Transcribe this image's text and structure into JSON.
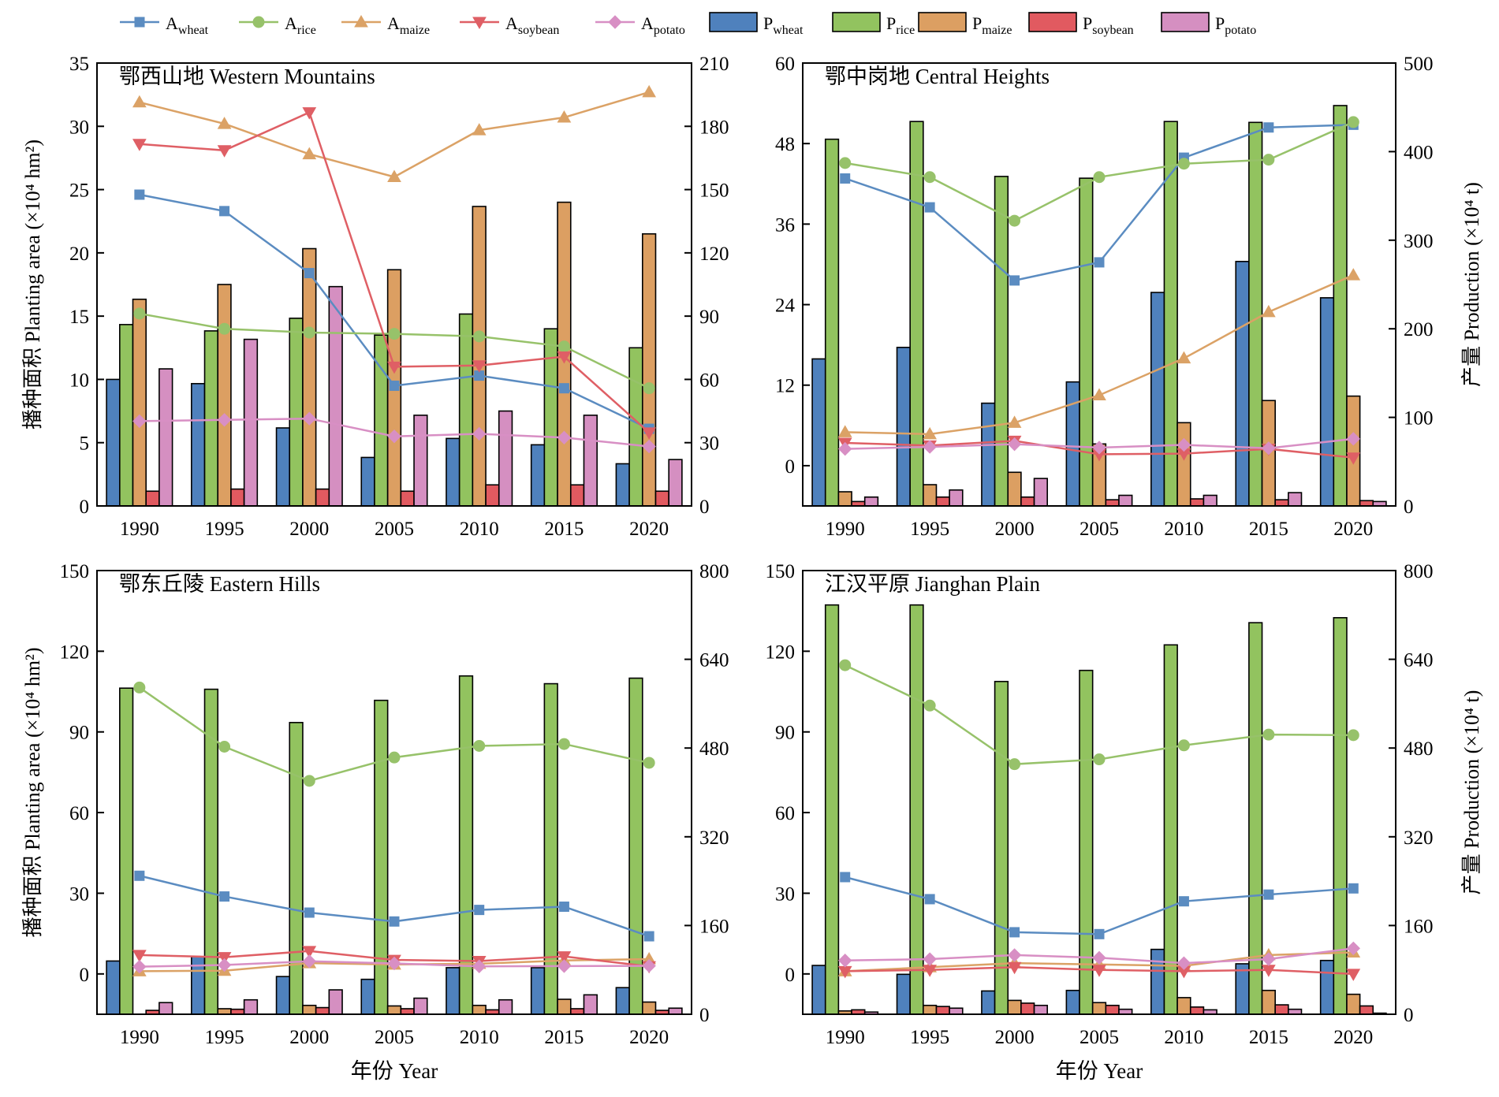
{
  "legend": {
    "items": [
      {
        "kind": "line",
        "series": "A_wheat",
        "base": "A",
        "sub": "wheat"
      },
      {
        "kind": "line",
        "series": "A_rice",
        "base": "A",
        "sub": "rice"
      },
      {
        "kind": "line",
        "series": "A_maize",
        "base": "A",
        "sub": "maize"
      },
      {
        "kind": "line",
        "series": "A_soybean",
        "base": "A",
        "sub": "soybean"
      },
      {
        "kind": "line",
        "series": "A_potato",
        "base": "A",
        "sub": "potato"
      },
      {
        "kind": "bar",
        "series": "P_wheat",
        "base": "P",
        "sub": "wheat"
      },
      {
        "kind": "bar",
        "series": "P_rice",
        "base": "P",
        "sub": "rice"
      },
      {
        "kind": "bar",
        "series": "P_maize",
        "base": "P",
        "sub": "maize"
      },
      {
        "kind": "bar",
        "series": "P_soybean",
        "base": "P",
        "sub": "soybean"
      },
      {
        "kind": "bar",
        "series": "P_potato",
        "base": "P",
        "sub": "potato"
      }
    ]
  },
  "styles": {
    "crops": [
      "wheat",
      "rice",
      "maize",
      "soybean",
      "potato"
    ],
    "line_colors": {
      "wheat": "#5b8cc1",
      "rice": "#97c26a",
      "maize": "#dba266",
      "soybean": "#df5f65",
      "potato": "#d88fc4"
    },
    "bar_colors": {
      "wheat": "#4f81bd",
      "rice": "#92c35f",
      "maize": "#dc9f62",
      "soybean": "#e15a60",
      "potato": "#d58fc1"
    },
    "markers": {
      "wheat": "square",
      "rice": "circle",
      "maize": "triangle-up",
      "soybean": "triangle-down",
      "potato": "diamond"
    }
  },
  "axis_labels": {
    "left": "播种面积 Planting area (×10⁴ hm²)",
    "right": "产量 Production (×10⁴ t)",
    "x": "年份 Year"
  },
  "chart_data": [
    {
      "type": "bar+line",
      "title": "鄂西山地 Western Mountains",
      "categories": [
        "1990",
        "1995",
        "2000",
        "2005",
        "2010",
        "2015",
        "2020"
      ],
      "left_axis": {
        "min": 0,
        "max": 35,
        "ticks": [
          0,
          5,
          10,
          15,
          20,
          25,
          30,
          35
        ]
      },
      "right_axis": {
        "min": 0,
        "max": 210,
        "ticks": [
          0,
          30,
          60,
          90,
          120,
          150,
          180,
          210
        ]
      },
      "area_series": [
        {
          "name": "A_wheat",
          "values": [
            24.6,
            23.3,
            18.4,
            9.5,
            10.3,
            9.3,
            6.1
          ]
        },
        {
          "name": "A_rice",
          "values": [
            15.2,
            14.0,
            13.7,
            13.6,
            13.4,
            12.6,
            9.3
          ]
        },
        {
          "name": "A_maize",
          "values": [
            31.9,
            30.2,
            27.8,
            26.0,
            29.7,
            30.7,
            32.7
          ]
        },
        {
          "name": "A_soybean",
          "values": [
            28.6,
            28.1,
            31.1,
            11.0,
            11.1,
            11.8,
            5.8
          ]
        },
        {
          "name": "A_potato",
          "values": [
            6.7,
            6.8,
            6.9,
            5.5,
            5.7,
            5.4,
            4.7
          ]
        }
      ],
      "production_series": [
        {
          "name": "P_wheat",
          "values": [
            60,
            58,
            37,
            23,
            32,
            29,
            20
          ]
        },
        {
          "name": "P_rice",
          "values": [
            86,
            83,
            89,
            81,
            91,
            84,
            75
          ]
        },
        {
          "name": "P_maize",
          "values": [
            98,
            105,
            122,
            112,
            142,
            144,
            129
          ]
        },
        {
          "name": "P_soybean",
          "values": [
            7,
            8,
            8,
            7,
            10,
            10,
            7
          ]
        },
        {
          "name": "P_potato",
          "values": [
            65,
            79,
            104,
            43,
            45,
            43,
            22
          ]
        }
      ]
    },
    {
      "type": "bar+line",
      "title": "鄂中岗地 Central Heights",
      "categories": [
        "1990",
        "1995",
        "2000",
        "2005",
        "2010",
        "2015",
        "2020"
      ],
      "left_axis": {
        "min": -6,
        "max": 60,
        "ticks": [
          0,
          12,
          24,
          36,
          48,
          60
        ]
      },
      "right_axis": {
        "min": 0,
        "max": 500,
        "ticks": [
          0,
          100,
          200,
          300,
          400,
          500
        ]
      },
      "area_series": [
        {
          "name": "A_wheat",
          "values": [
            42.8,
            38.5,
            27.6,
            30.3,
            45.9,
            50.4,
            50.8
          ]
        },
        {
          "name": "A_rice",
          "values": [
            45.1,
            43.0,
            36.5,
            43.0,
            45.0,
            45.6,
            51.2
          ]
        },
        {
          "name": "A_maize",
          "values": [
            5.0,
            4.7,
            6.4,
            10.5,
            16.0,
            22.9,
            28.4
          ]
        },
        {
          "name": "A_soybean",
          "values": [
            3.4,
            3.0,
            3.7,
            1.7,
            1.8,
            2.5,
            1.2
          ]
        },
        {
          "name": "A_potato",
          "values": [
            2.5,
            2.8,
            3.2,
            2.7,
            3.1,
            2.6,
            4.0
          ]
        }
      ],
      "production_series": [
        {
          "name": "P_wheat",
          "values": [
            166,
            179,
            116,
            140,
            241,
            276,
            235
          ]
        },
        {
          "name": "P_rice",
          "values": [
            414,
            434,
            372,
            370,
            434,
            433,
            452
          ]
        },
        {
          "name": "P_maize",
          "values": [
            16,
            24,
            38,
            70,
            94,
            119,
            124
          ]
        },
        {
          "name": "P_soybean",
          "values": [
            5,
            10,
            10,
            7,
            8,
            7,
            6
          ]
        },
        {
          "name": "P_potato",
          "values": [
            10,
            18,
            31,
            12,
            12,
            15,
            5
          ]
        }
      ]
    },
    {
      "type": "bar+line",
      "title": "鄂东丘陵 Eastern Hills",
      "categories": [
        "1990",
        "1995",
        "2000",
        "2005",
        "2010",
        "2015",
        "2020"
      ],
      "left_axis": {
        "min": -15,
        "max": 150,
        "ticks": [
          0,
          30,
          60,
          90,
          120,
          150
        ]
      },
      "right_axis": {
        "min": 0,
        "max": 800,
        "ticks": [
          0,
          160,
          320,
          480,
          640,
          800
        ]
      },
      "area_series": [
        {
          "name": "A_wheat",
          "values": [
            36.5,
            28.8,
            22.8,
            19.5,
            23.8,
            25.0,
            14.0
          ]
        },
        {
          "name": "A_rice",
          "values": [
            106.5,
            84.5,
            71.8,
            80.5,
            84.8,
            85.5,
            78.5
          ]
        },
        {
          "name": "A_maize",
          "values": [
            1.0,
            1.2,
            4.0,
            3.5,
            3.8,
            5.0,
            5.5
          ]
        },
        {
          "name": "A_soybean",
          "values": [
            7.0,
            6.2,
            8.5,
            5.2,
            4.8,
            6.5,
            2.8
          ]
        },
        {
          "name": "A_potato",
          "values": [
            2.7,
            3.3,
            4.7,
            3.9,
            2.8,
            2.9,
            3.0
          ]
        }
      ],
      "production_series": [
        {
          "name": "P_wheat",
          "values": [
            96,
            104,
            68,
            63,
            84,
            84,
            48
          ]
        },
        {
          "name": "P_rice",
          "values": [
            588,
            586,
            526,
            566,
            610,
            596,
            606
          ]
        },
        {
          "name": "P_maize",
          "values": [
            0,
            10,
            16,
            15,
            16,
            27,
            22
          ]
        },
        {
          "name": "P_soybean",
          "values": [
            7,
            9,
            12,
            10,
            8,
            10,
            7
          ]
        },
        {
          "name": "P_potato",
          "values": [
            21,
            26,
            44,
            29,
            26,
            35,
            11
          ]
        }
      ]
    },
    {
      "type": "bar+line",
      "title": "江汉平原 Jianghan Plain",
      "categories": [
        "1990",
        "1995",
        "2000",
        "2005",
        "2010",
        "2015",
        "2020"
      ],
      "left_axis": {
        "min": -15,
        "max": 150,
        "ticks": [
          0,
          30,
          60,
          90,
          120,
          150
        ]
      },
      "right_axis": {
        "min": 0,
        "max": 800,
        "ticks": [
          0,
          160,
          320,
          480,
          640,
          800
        ]
      },
      "area_series": [
        {
          "name": "A_wheat",
          "values": [
            36.0,
            27.8,
            15.5,
            14.8,
            27.0,
            29.5,
            31.8
          ]
        },
        {
          "name": "A_rice",
          "values": [
            114.8,
            99.8,
            78.0,
            79.8,
            85.0,
            89.0,
            88.8
          ]
        },
        {
          "name": "A_maize",
          "values": [
            1.0,
            2.5,
            4.0,
            3.5,
            3.0,
            7.0,
            8.0
          ]
        },
        {
          "name": "A_soybean",
          "values": [
            1.0,
            1.5,
            2.5,
            1.5,
            1.0,
            1.5,
            0.0
          ]
        },
        {
          "name": "A_potato",
          "values": [
            5.0,
            5.5,
            7.0,
            6.0,
            4.0,
            5.5,
            9.5
          ]
        }
      ],
      "production_series": [
        {
          "name": "P_wheat",
          "values": [
            88,
            72,
            42,
            43,
            117,
            91,
            97
          ]
        },
        {
          "name": "P_rice",
          "values": [
            738,
            738,
            600,
            620,
            666,
            706,
            715
          ]
        },
        {
          "name": "P_maize",
          "values": [
            6,
            16,
            25,
            21,
            30,
            43,
            36
          ]
        },
        {
          "name": "P_soybean",
          "values": [
            8,
            14,
            20,
            16,
            13,
            17,
            15
          ]
        },
        {
          "name": "P_potato",
          "values": [
            4,
            11,
            16,
            9,
            8,
            9,
            2
          ]
        }
      ]
    }
  ]
}
